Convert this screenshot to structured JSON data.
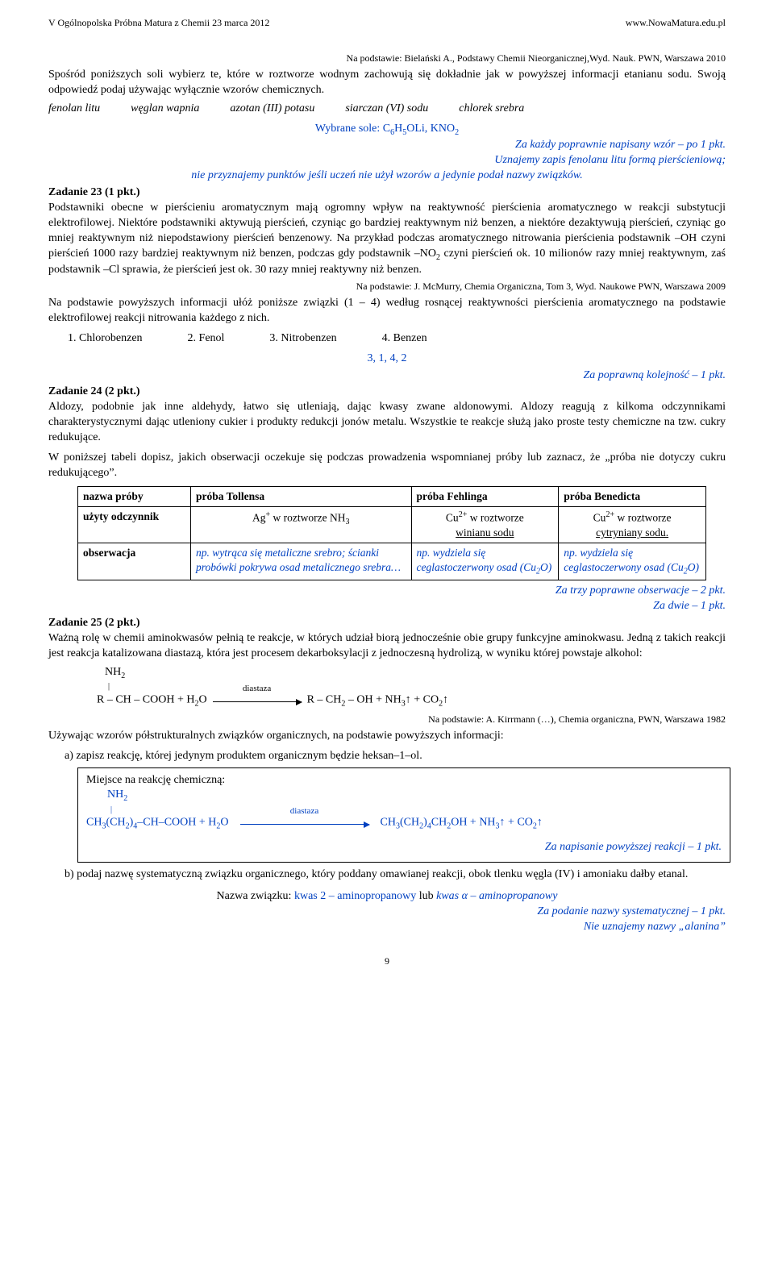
{
  "header": {
    "left": "V Ogólnopolska Próbna Matura z Chemii 23 marca 2012",
    "right": "www.NowaMatura.edu.pl"
  },
  "intro": {
    "source": "Na podstawie: Bielański A., Podstawy Chemii Nieorganicznej,Wyd. Nauk. PWN, Warszawa 2010",
    "para": "Spośród poniższych soli wybierz te, które w roztworze wodnym zachowują się dokładnie jak w powyższej informacji etanianu sodu. Swoją odpowiedź podaj używając wyłącznie wzorów chemicznych."
  },
  "salts": {
    "a": "fenolan litu",
    "b": "węglan wapnia",
    "c": "azotan (III) potasu",
    "d": "siarczan (VI) sodu",
    "e": "chlorek srebra"
  },
  "ans1": {
    "line1a": "Wybrane sole: C",
    "line1b": "OLi,  KNO",
    "scoring": "Za każdy poprawnie napisany wzór – po 1 pkt.",
    "note1": "Uznajemy zapis fenolanu litu formą pierścieniową;",
    "note2": "nie przyznajemy punktów jeśli uczeń nie użył wzorów a jedynie podał nazwy związków."
  },
  "task23": {
    "head": "Zadanie 23 (1 pkt.)",
    "body": "Podstawniki obecne w pierścieniu aromatycznym mają ogromny wpływ na reaktywność pierścienia aromatycznego w reakcji substytucji elektrofilowej. Niektóre podstawniki aktywują pierścień, czyniąc go bardziej reaktywnym niż benzen, a niektóre dezaktywują pierścień, czyniąc go mniej reaktywnym niż niepodstawiony pierścień benzenowy. Na przykład podczas aromatycznego nitrowania pierścienia podstawnik –OH czyni pierścień 1000 razy bardziej reaktywnym niż benzen, podczas gdy podstawnik –NO",
    "body2": " czyni pierścień ok. 10 milionów razy mniej reaktywnym, zaś podstawnik –Cl sprawia, że pierścień jest ok. 30 razy mniej reaktywny niż benzen.",
    "source": "Na podstawie: J. McMurry, Chemia Organiczna, Tom 3, Wyd. Naukowe PWN, Warszawa 2009",
    "instr": "Na podstawie powyższych informacji ułóż poniższe związki (1 – 4) według rosnącej reaktywności pierścienia aromatycznego na podstawie elektrofilowej reakcji nitrowania każdego z nich.",
    "opt1": "1.   Chlorobenzen",
    "opt2": "2.   Fenol",
    "opt3": "3.   Nitrobenzen",
    "opt4": "4.   Benzen",
    "ans": "3, 1, 4, 2",
    "scoring": "Za poprawną kolejność – 1 pkt."
  },
  "task24": {
    "head": "Zadanie 24 (2 pkt.)",
    "p1": "Aldozy, podobnie jak inne aldehydy, łatwo się utleniają, dając kwasy zwane aldonowymi. Aldozy reagują z kilkoma odczynnikami charakterystycznymi dając utleniony cukier i produkty redukcji jonów metalu. Wszystkie te reakcje służą jako proste testy chemiczne na tzw. cukry redukujące.",
    "p2": "W poniższej tabeli dopisz, jakich obserwacji oczekuje się podczas prowadzenia wspomnianej próby lub zaznacz, że „próba nie dotyczy cukru redukującego”.",
    "table": {
      "h1": "nazwa próby",
      "h2": "próba Tollensa",
      "h3": "próba Fehlinga",
      "h4": "próba Benedicta",
      "r1c1": "użyty odczynnik",
      "r1c2_a": "Ag",
      "r1c2_b": " w roztworze NH",
      "r1c3_a": "Cu",
      "r1c3_b": " w roztworze",
      "r1c3_c": "winianu sodu",
      "r1c4_a": "Cu",
      "r1c4_b": " w roztworze",
      "r1c4_c": "cytryniany sodu.",
      "r2c1": "obserwacja",
      "r2c2": "np. wytrąca się metaliczne srebro; ścianki probówki pokrywa osad metalicznego srebra…",
      "r2c3_a": "np. wydziela się ceglastoczerwony osad (Cu",
      "r2c3_b": "O)",
      "r2c4_a": "np. wydziela się ceglastoczerwony osad (Cu",
      "r2c4_b": "O)"
    },
    "scoring1": "Za trzy poprawne obserwacje – 2 pkt.",
    "scoring2": "Za dwie – 1 pkt."
  },
  "task25": {
    "head": "Zadanie 25 (2 pkt.)",
    "p1": "Ważną rolę w chemii aminokwasów pełnią te reakcje, w których udział biorą jednocześnie obie grupy funkcyjne aminokwasu. Jedną z takich reakcji jest reakcja katalizowana diastazą, która jest procesem dekarboksylacji z jednoczesną hydrolizą, w wyniku której powstaje alkohol:",
    "r_top": "NH",
    "r_bar": "|",
    "r_lhs": "R – CH – COOH  +  H",
    "diast": "diastaza",
    "r_rhs": "R – CH",
    "r_rhs2": " – OH  +  NH",
    "r_rhs3": "↑  +  CO",
    "r_rhs4": "↑",
    "source": "Na podstawie: A. Kirrmann (…), Chemia organiczna, PWN, Warszawa 1982",
    "instr": "Używając wzorów półstrukturalnych związków organicznych, na podstawie powyższych informacji:",
    "a": "a)    zapisz reakcję, której jedynym produktem organicznym będzie heksan–1–ol.",
    "box_h": "Miejsce na reakcję chemiczną:",
    "box_top": "NH",
    "box_lhs1": "CH",
    "box_lhs2": "(CH",
    "box_lhs3": ")",
    "box_lhs4": "–CH–COOH  +  H",
    "box_lhs5": "O",
    "box_rhs1": "CH",
    "box_rhs2": "(CH",
    "box_rhs3": ")",
    "box_rhs4": "CH",
    "box_rhs5": "OH  +  NH",
    "box_rhs6": "↑   +  CO",
    "box_rhs7": "↑",
    "box_score": "Za napisanie powyższej reakcji – 1 pkt.",
    "b": "b)   podaj nazwę systematyczną związku organicznego, który poddany omawianej reakcji, obok tlenku węgla (IV) i amoniaku dałby etanal.",
    "b_ans_a": "Nazwa związku: ",
    "b_ans_b": "kwas 2 – aminopropanowy ",
    "b_ans_c": "lub ",
    "b_ans_d": "kwas α – aminopropanowy",
    "b_score": "Za podanie nazwy systematycznej – 1 pkt.",
    "b_note": "Nie uznajemy nazwy „alanina”"
  },
  "page": "9"
}
